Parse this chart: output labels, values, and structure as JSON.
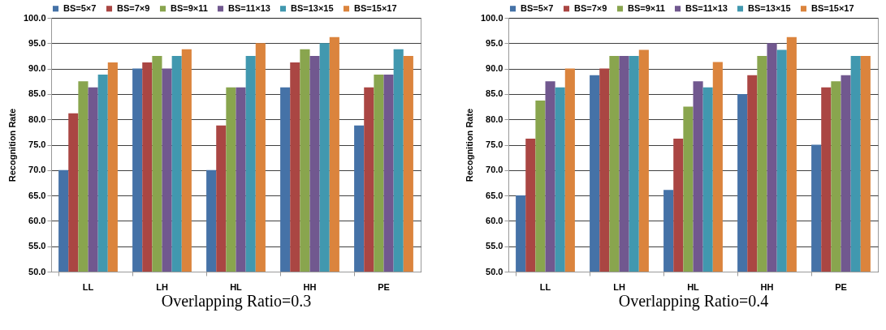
{
  "chart_data": [
    {
      "type": "bar",
      "xlabel": "Overlapping Ratio=0.3",
      "ylabel": "Recognition Rate",
      "categories": [
        "LL",
        "LH",
        "HL",
        "HH",
        "PE"
      ],
      "ylim": [
        50,
        100
      ],
      "yticks": [
        {
          "value": 50,
          "label": "50.0"
        },
        {
          "value": 55,
          "label": "55.0"
        },
        {
          "value": 60,
          "label": "60.0"
        },
        {
          "value": 65,
          "label": "65.0"
        },
        {
          "value": 70,
          "label": "70.0"
        },
        {
          "value": 75,
          "label": "75.0"
        },
        {
          "value": 80,
          "label": "80.0"
        },
        {
          "value": 85,
          "label": "85.0"
        },
        {
          "value": 90,
          "label": "90.0"
        },
        {
          "value": 95,
          "label": "95.0"
        },
        {
          "value": 100,
          "label": "100.0"
        }
      ],
      "grid": "y",
      "legend": "top",
      "series": [
        {
          "name": "BS=5×7",
          "color": "#4572a7",
          "values": [
            70,
            90,
            70,
            86.3,
            78.8
          ]
        },
        {
          "name": "BS=7×9",
          "color": "#aa4643",
          "values": [
            81.2,
            91.2,
            78.8,
            91.2,
            86.3
          ]
        },
        {
          "name": "BS=9×11",
          "color": "#89a54e",
          "values": [
            87.5,
            92.5,
            86.3,
            93.8,
            88.8
          ]
        },
        {
          "name": "BS=11×13",
          "color": "#71588f",
          "values": [
            86.3,
            90,
            86.3,
            92.5,
            88.8
          ]
        },
        {
          "name": "BS=13×15",
          "color": "#4198af",
          "values": [
            88.8,
            92.5,
            92.5,
            95,
            93.8
          ]
        },
        {
          "name": "BS=15×17",
          "color": "#db843d",
          "values": [
            91.2,
            93.8,
            95,
            96.2,
            92.5
          ]
        }
      ]
    },
    {
      "type": "bar",
      "xlabel": "Overlapping Ratio=0.4",
      "ylabel": "Recognition Rate",
      "categories": [
        "LL",
        "LH",
        "HL",
        "HH",
        "PE"
      ],
      "ylim": [
        50,
        100
      ],
      "yticks": [
        {
          "value": 50,
          "label": "50.0"
        },
        {
          "value": 55,
          "label": "55.0"
        },
        {
          "value": 60,
          "label": "60.0"
        },
        {
          "value": 65,
          "label": "65.0"
        },
        {
          "value": 70,
          "label": "70.0"
        },
        {
          "value": 75,
          "label": "75.0"
        },
        {
          "value": 80,
          "label": "80.0"
        },
        {
          "value": 85,
          "label": "85.0"
        },
        {
          "value": 90,
          "label": "90.0"
        },
        {
          "value": 95,
          "label": "95.0"
        },
        {
          "value": 100,
          "label": "100.0"
        }
      ],
      "grid": "y",
      "legend": "top",
      "series": [
        {
          "name": "BS=5×7",
          "color": "#4572a7",
          "values": [
            65,
            88.7,
            66.1,
            85,
            75
          ]
        },
        {
          "name": "BS=7×9",
          "color": "#aa4643",
          "values": [
            76.2,
            90,
            76.2,
            88.7,
            86.3
          ]
        },
        {
          "name": "BS=9×11",
          "color": "#89a54e",
          "values": [
            83.7,
            92.5,
            82.5,
            92.5,
            87.5
          ]
        },
        {
          "name": "BS=11×13",
          "color": "#71588f",
          "values": [
            87.5,
            92.5,
            87.5,
            95,
            88.7
          ]
        },
        {
          "name": "BS=13×15",
          "color": "#4198af",
          "values": [
            86.3,
            92.5,
            86.3,
            93.7,
            92.5
          ]
        },
        {
          "name": "BS=15×17",
          "color": "#db843d",
          "values": [
            90,
            93.7,
            91.3,
            96.2,
            92.5
          ]
        }
      ]
    }
  ]
}
